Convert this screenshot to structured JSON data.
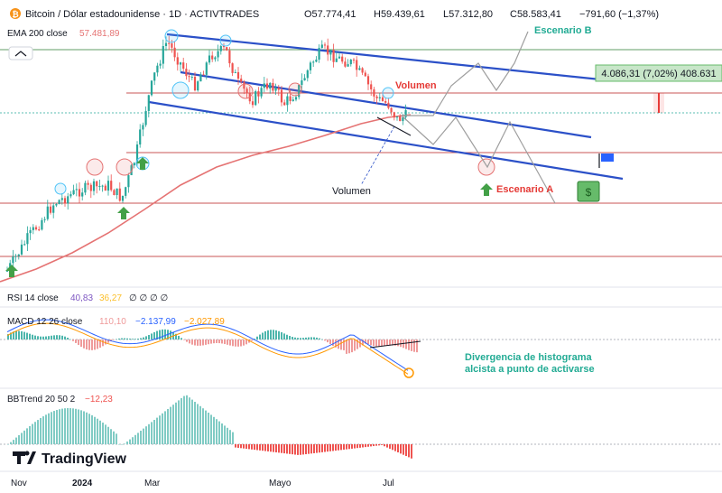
{
  "header": {
    "symbol_icon": "bitcoin-icon",
    "symbol": "Bitcoin / Dólar estadounidense · 1D · ACTIVTRADES",
    "open": "O57.774,41",
    "high": "H59.439,61",
    "low": "L57.312,80",
    "close": "C58.583,41",
    "change": "−791,60 (−1,37%)"
  },
  "indicators": {
    "ema": {
      "label": "EMA 200 close",
      "value": "57.481,89"
    },
    "rsi": {
      "label": "RSI 14 close",
      "value1": "40,83",
      "value2": "36,27",
      "placeholders": "∅ ∅ ∅ ∅"
    },
    "macd": {
      "label": "MACD 12 26 close",
      "value1": "110,10",
      "value2": "−2.137,99",
      "value3": "−2.027,89"
    },
    "bbtrend": {
      "label": "BBTrend 20 50 2",
      "value": "−12,23"
    }
  },
  "annotations": {
    "scenario_b": "Escenario B",
    "scenario_a": "Escenario A",
    "volume_top": "Volumen",
    "volume_bottom": "Volumen",
    "measure": "4.086,31 (7,02%) 408.631",
    "divergence_line1": "Divergencia de histograma",
    "divergence_line2": "alcista a punto de activarse"
  },
  "x_axis": {
    "labels": [
      "Nov",
      "2024",
      "Mar",
      "Mayo",
      "Jul"
    ]
  },
  "brand": {
    "logo_text": "TradingView",
    "logo_icon": "tradingview-logo-icon"
  },
  "colors": {
    "up": "#26a69a",
    "down": "#ef5350",
    "ema": "#e57373",
    "channel": "#2b50c8",
    "support": "#b71c1c",
    "resistance": "#2e7d32",
    "macd_line": "#2962ff",
    "signal_line": "#ff9800"
  },
  "chart_data": {
    "type": "candlestick",
    "title": "Bitcoin / Dólar estadounidense · 1D · ACTIVTRADES",
    "x_labels": [
      "Nov",
      "2024",
      "Mar",
      "Mayo",
      "Jul"
    ],
    "price_trend": [
      {
        "period": "Nov",
        "price": 35000
      },
      {
        "period": "2024",
        "price": 44000
      },
      {
        "period": "Mar",
        "price": 68000
      },
      {
        "period": "Mayo",
        "price": 62000
      },
      {
        "period": "Jul",
        "price": 58583
      }
    ],
    "ema200_last": 57481.89,
    "rsi_values": [
      40.83,
      36.27
    ],
    "macd_values": [
      110.1,
      -2137.99,
      -2027.89
    ],
    "bbtrend_value": -12.23
  }
}
